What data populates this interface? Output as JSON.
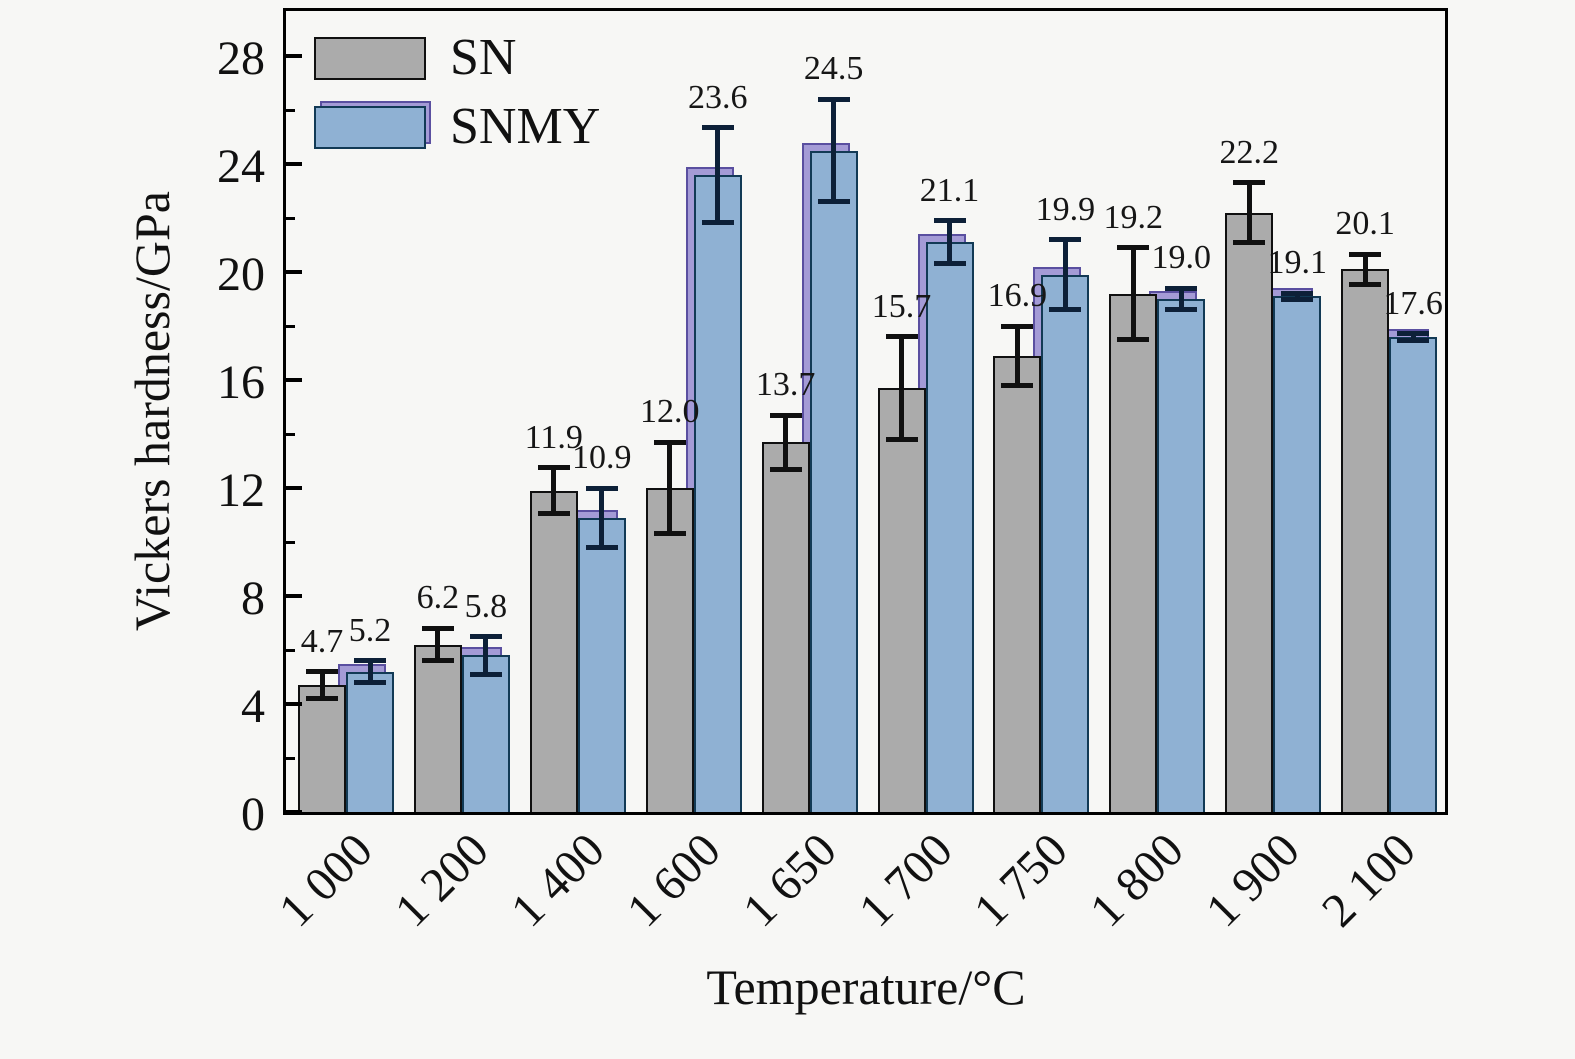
{
  "page": {
    "background": "#f7f7f5"
  },
  "chart_data": {
    "type": "bar",
    "title": "",
    "xlabel": "Temperature/°C",
    "ylabel": "Vickers hardness/GPa",
    "categories": [
      "1 000",
      "1 200",
      "1 400",
      "1 600",
      "1 650",
      "1 700",
      "1 750",
      "1 800",
      "1 900",
      "2 100"
    ],
    "series": [
      {
        "name": "SN",
        "fill": "#ababab",
        "border": "#101010",
        "error_color": "#101010",
        "values": [
          4.7,
          6.2,
          11.9,
          12.0,
          13.7,
          15.7,
          16.9,
          19.2,
          22.2,
          20.1
        ],
        "errors": [
          0.5,
          0.6,
          0.85,
          1.7,
          1.0,
          1.9,
          1.1,
          1.7,
          1.1,
          0.55
        ]
      },
      {
        "name": "SNMY",
        "fill": "#8fb1d3",
        "border": "#123a55",
        "shadow_fill": "#a49bd6",
        "shadow_border": "#5a4fa0",
        "error_color": "#0d2038",
        "values": [
          5.2,
          5.8,
          10.9,
          23.6,
          24.5,
          21.1,
          19.9,
          19.0,
          19.1,
          17.6
        ],
        "errors": [
          0.4,
          0.7,
          1.1,
          1.75,
          1.9,
          0.8,
          1.3,
          0.4,
          0.12,
          0.12
        ]
      }
    ],
    "value_label_decimals": 1,
    "ylim": [
      0,
      29.7
    ],
    "yticks": [
      0,
      4,
      8,
      12,
      16,
      20,
      24,
      28
    ],
    "minor_yticks": [
      2,
      6,
      10,
      14,
      18,
      22,
      26
    ],
    "legend_position": "top-left",
    "grid": false
  }
}
